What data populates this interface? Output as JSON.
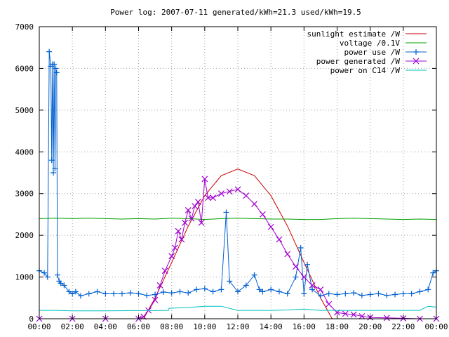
{
  "chart_data": {
    "type": "line",
    "title": "Power log: 2007-07-11 generated/kWh=21.3 used/kWh=19.5",
    "xlabel": "",
    "ylabel": "",
    "xlim": [
      0,
      24
    ],
    "ylim": [
      0,
      7000
    ],
    "grid": true,
    "legend_position": "top-right",
    "x_ticks": [
      "00:00",
      "02:00",
      "04:00",
      "06:00",
      "08:00",
      "10:00",
      "12:00",
      "14:00",
      "16:00",
      "18:00",
      "20:00",
      "22:00",
      "00:00"
    ],
    "y_ticks": [
      "0",
      "1000",
      "2000",
      "3000",
      "4000",
      "5000",
      "6000",
      "7000"
    ],
    "series": [
      {
        "name": "sunlight estimate /W",
        "color": "#cc0000",
        "marker": "none",
        "x": [
          6.3,
          7.0,
          8.0,
          9.0,
          10.0,
          11.0,
          12.0,
          13.0,
          14.0,
          15.0,
          16.0,
          17.0,
          17.7
        ],
        "y": [
          0,
          500,
          1350,
          2220,
          2950,
          3430,
          3590,
          3430,
          2950,
          2220,
          1350,
          500,
          0
        ]
      },
      {
        "name": "voltage /0.1V",
        "color": "#00a000",
        "marker": "none",
        "x": [
          0.0,
          1.0,
          2.0,
          3.0,
          4.0,
          5.0,
          6.0,
          7.0,
          8.0,
          9.0,
          10.0,
          11.0,
          12.0,
          13.0,
          14.0,
          15.0,
          16.0,
          17.0,
          18.0,
          19.0,
          20.0,
          21.0,
          22.0,
          23.0,
          24.0
        ],
        "y": [
          2400,
          2410,
          2400,
          2410,
          2400,
          2390,
          2400,
          2390,
          2410,
          2400,
          2380,
          2400,
          2410,
          2400,
          2390,
          2390,
          2380,
          2380,
          2400,
          2410,
          2400,
          2390,
          2380,
          2390,
          2380
        ]
      },
      {
        "name": "power use /W",
        "color": "#0060d0",
        "marker": "plus",
        "x": [
          0.0,
          0.3,
          0.5,
          0.6,
          0.7,
          0.75,
          0.8,
          0.85,
          0.9,
          0.95,
          1.0,
          1.05,
          1.1,
          1.2,
          1.3,
          1.5,
          1.8,
          2.0,
          2.2,
          2.5,
          3.0,
          3.5,
          4.0,
          4.5,
          5.0,
          5.5,
          6.0,
          6.5,
          7.0,
          7.5,
          8.0,
          8.5,
          9.0,
          9.5,
          10.0,
          10.5,
          11.0,
          11.3,
          11.5,
          12.0,
          12.5,
          13.0,
          13.3,
          13.5,
          14.0,
          14.5,
          15.0,
          15.5,
          15.8,
          16.0,
          16.2,
          16.5,
          17.0,
          17.5,
          18.0,
          18.5,
          19.0,
          19.5,
          20.0,
          20.5,
          21.0,
          21.5,
          22.0,
          22.5,
          23.0,
          23.5,
          23.8,
          24.0
        ],
        "y": [
          1150,
          1100,
          1000,
          6400,
          6050,
          3800,
          6100,
          3500,
          6100,
          3600,
          6000,
          5900,
          1050,
          900,
          850,
          800,
          650,
          600,
          650,
          550,
          600,
          650,
          600,
          600,
          600,
          620,
          600,
          560,
          580,
          640,
          620,
          650,
          620,
          700,
          720,
          650,
          700,
          2550,
          900,
          650,
          800,
          1050,
          700,
          650,
          700,
          650,
          600,
          1000,
          1700,
          600,
          1300,
          700,
          550,
          600,
          580,
          600,
          620,
          560,
          580,
          600,
          560,
          580,
          600,
          600,
          650,
          700,
          1100,
          1150
        ]
      },
      {
        "name": "power generated /W",
        "color": "#a000d0",
        "marker": "cross",
        "x": [
          0.0,
          2.0,
          4.0,
          6.0,
          6.3,
          6.6,
          7.0,
          7.3,
          7.6,
          8.0,
          8.2,
          8.4,
          8.6,
          8.8,
          9.0,
          9.2,
          9.4,
          9.6,
          9.8,
          10.0,
          10.2,
          10.5,
          11.0,
          11.5,
          12.0,
          12.5,
          13.0,
          13.5,
          14.0,
          14.5,
          15.0,
          15.5,
          16.0,
          16.5,
          17.0,
          17.5,
          18.0,
          18.5,
          19.0,
          19.5,
          20.0,
          21.0,
          22.0,
          23.0,
          24.0
        ],
        "y": [
          0,
          0,
          0,
          0,
          50,
          200,
          450,
          800,
          1150,
          1500,
          1700,
          2100,
          1900,
          2300,
          2600,
          2400,
          2700,
          2800,
          2300,
          3350,
          2900,
          2900,
          3000,
          3050,
          3100,
          2950,
          2750,
          2500,
          2200,
          1900,
          1550,
          1250,
          1000,
          800,
          700,
          350,
          150,
          120,
          100,
          60,
          30,
          20,
          10,
          0,
          0
        ]
      },
      {
        "name": "power on C14 /W",
        "color": "#00c0c0",
        "marker": "none",
        "x": [
          0.0,
          1.0,
          2.0,
          4.0,
          6.0,
          7.0,
          7.8,
          7.85,
          8.5,
          9.0,
          10.0,
          11.0,
          12.0,
          13.0,
          14.0,
          15.0,
          16.0,
          17.0,
          18.0,
          19.0,
          20.0,
          21.0,
          22.0,
          23.0,
          23.5,
          24.0
        ],
        "y": [
          200,
          200,
          190,
          190,
          195,
          195,
          200,
          250,
          260,
          270,
          300,
          300,
          200,
          200,
          200,
          210,
          230,
          200,
          200,
          200,
          200,
          200,
          200,
          200,
          300,
          280
        ]
      }
    ]
  }
}
